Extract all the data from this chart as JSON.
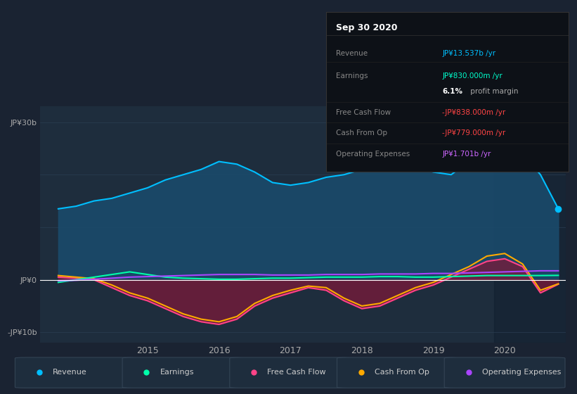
{
  "bg_color": "#1a2332",
  "chart_bg": "#1e2d3d",
  "info_title": "Sep 30 2020",
  "ylabel_top": "JP¥30b",
  "ylabel_zero": "JP¥0",
  "ylabel_bottom": "-JP¥10b",
  "ylim": [
    -12,
    33
  ],
  "xlim": [
    2013.5,
    2020.85
  ],
  "xticks": [
    2015,
    2016,
    2017,
    2018,
    2019,
    2020
  ],
  "revenue": {
    "x": [
      2013.75,
      2014.0,
      2014.25,
      2014.5,
      2014.75,
      2015.0,
      2015.25,
      2015.5,
      2015.75,
      2016.0,
      2016.25,
      2016.5,
      2016.75,
      2017.0,
      2017.25,
      2017.5,
      2017.75,
      2018.0,
      2018.25,
      2018.5,
      2018.75,
      2019.0,
      2019.25,
      2019.5,
      2019.75,
      2020.0,
      2020.25,
      2020.5,
      2020.75
    ],
    "y": [
      13.5,
      14.0,
      15.0,
      15.5,
      16.5,
      17.5,
      19.0,
      20.0,
      21.0,
      22.5,
      22.0,
      20.5,
      18.5,
      18.0,
      18.5,
      19.5,
      20.0,
      21.0,
      22.0,
      22.5,
      21.5,
      20.5,
      20.0,
      22.5,
      24.0,
      27.0,
      24.0,
      20.0,
      13.5
    ],
    "color": "#00bfff",
    "fill_color": "#1a4a6b",
    "label": "Revenue"
  },
  "earnings": {
    "x": [
      2013.75,
      2014.0,
      2014.25,
      2014.5,
      2014.75,
      2015.0,
      2015.25,
      2015.5,
      2015.75,
      2016.0,
      2016.25,
      2016.5,
      2016.75,
      2017.0,
      2017.25,
      2017.5,
      2017.75,
      2018.0,
      2018.25,
      2018.5,
      2018.75,
      2019.0,
      2019.25,
      2019.5,
      2019.75,
      2020.0,
      2020.25,
      2020.5,
      2020.75
    ],
    "y": [
      -0.5,
      0.0,
      0.5,
      1.0,
      1.5,
      1.0,
      0.5,
      0.3,
      0.2,
      0.1,
      0.1,
      0.2,
      0.3,
      0.3,
      0.4,
      0.5,
      0.5,
      0.5,
      0.6,
      0.6,
      0.5,
      0.5,
      0.6,
      0.7,
      0.8,
      0.8,
      0.8,
      0.8,
      0.83
    ],
    "color": "#00ffaa",
    "label": "Earnings"
  },
  "free_cash_flow": {
    "x": [
      2013.75,
      2014.0,
      2014.25,
      2014.5,
      2014.75,
      2015.0,
      2015.25,
      2015.5,
      2015.75,
      2016.0,
      2016.25,
      2016.5,
      2016.75,
      2017.0,
      2017.25,
      2017.5,
      2017.75,
      2018.0,
      2018.25,
      2018.5,
      2018.75,
      2019.0,
      2019.25,
      2019.5,
      2019.75,
      2020.0,
      2020.25,
      2020.5,
      2020.75
    ],
    "y": [
      0.5,
      0.3,
      0.0,
      -1.5,
      -3.0,
      -4.0,
      -5.5,
      -7.0,
      -8.0,
      -8.5,
      -7.5,
      -5.0,
      -3.5,
      -2.5,
      -1.5,
      -2.0,
      -4.0,
      -5.5,
      -5.0,
      -3.5,
      -2.0,
      -1.0,
      0.5,
      2.0,
      3.5,
      4.0,
      2.5,
      -2.5,
      -0.838
    ],
    "color": "#ff4488",
    "fill_color": "#7b1a3a",
    "label": "Free Cash Flow"
  },
  "cash_from_op": {
    "x": [
      2013.75,
      2014.0,
      2014.25,
      2014.5,
      2014.75,
      2015.0,
      2015.25,
      2015.5,
      2015.75,
      2016.0,
      2016.25,
      2016.5,
      2016.75,
      2017.0,
      2017.25,
      2017.5,
      2017.75,
      2018.0,
      2018.25,
      2018.5,
      2018.75,
      2019.0,
      2019.25,
      2019.5,
      2019.75,
      2020.0,
      2020.25,
      2020.5,
      2020.75
    ],
    "y": [
      0.8,
      0.5,
      0.2,
      -1.0,
      -2.5,
      -3.5,
      -5.0,
      -6.5,
      -7.5,
      -8.0,
      -7.0,
      -4.5,
      -3.0,
      -2.0,
      -1.2,
      -1.5,
      -3.5,
      -5.0,
      -4.5,
      -3.0,
      -1.5,
      -0.5,
      1.0,
      2.5,
      4.5,
      5.0,
      3.0,
      -2.0,
      -0.779
    ],
    "color": "#ffaa00",
    "label": "Cash From Op"
  },
  "operating_expenses": {
    "x": [
      2013.75,
      2014.0,
      2014.25,
      2014.5,
      2014.75,
      2015.0,
      2015.25,
      2015.5,
      2015.75,
      2016.0,
      2016.25,
      2016.5,
      2016.75,
      2017.0,
      2017.25,
      2017.5,
      2017.75,
      2018.0,
      2018.25,
      2018.5,
      2018.75,
      2019.0,
      2019.25,
      2019.5,
      2019.75,
      2020.0,
      2020.25,
      2020.5,
      2020.75
    ],
    "y": [
      -0.2,
      -0.1,
      0.1,
      0.3,
      0.5,
      0.6,
      0.7,
      0.8,
      0.9,
      1.0,
      1.0,
      1.0,
      0.9,
      0.9,
      0.9,
      1.0,
      1.0,
      1.0,
      1.1,
      1.1,
      1.1,
      1.2,
      1.2,
      1.3,
      1.4,
      1.5,
      1.6,
      1.7,
      1.701
    ],
    "color": "#aa44ff",
    "label": "Operating Expenses"
  },
  "legend_items": [
    {
      "label": "Revenue",
      "color": "#00bfff"
    },
    {
      "label": "Earnings",
      "color": "#00ffaa"
    },
    {
      "label": "Free Cash Flow",
      "color": "#ff4488"
    },
    {
      "label": "Cash From Op",
      "color": "#ffaa00"
    },
    {
      "label": "Operating Expenses",
      "color": "#aa44ff"
    }
  ],
  "info_rows": [
    {
      "label": "Revenue",
      "value": "JP¥13.537b /yr",
      "value_color": "#00bfff",
      "label_color": "#888888"
    },
    {
      "label": "Earnings",
      "value": "JP¥830.000m /yr",
      "value_color": "#00ffcc",
      "label_color": "#888888"
    },
    {
      "label": "",
      "value": "6.1% profit margin",
      "value_color": "#aaaaaa",
      "label_color": "#888888",
      "bold_prefix": "6.1%",
      "bold_suffix": " profit margin"
    },
    {
      "label": "Free Cash Flow",
      "value": "-JP¥838.000m /yr",
      "value_color": "#ff4444",
      "label_color": "#888888"
    },
    {
      "label": "Cash From Op",
      "value": "-JP¥779.000m /yr",
      "value_color": "#ff4444",
      "label_color": "#888888"
    },
    {
      "label": "Operating Expenses",
      "value": "JP¥1.701b /yr",
      "value_color": "#cc66ff",
      "label_color": "#888888"
    }
  ],
  "grid_lines_y": [
    30,
    20,
    10,
    0,
    -10
  ],
  "grid_color": "#2a3d52",
  "zero_line_color": "#ffffff",
  "highlight_x_start": 2019.85,
  "highlight_color": "#0d1a2a",
  "highlight_alpha": 0.4
}
